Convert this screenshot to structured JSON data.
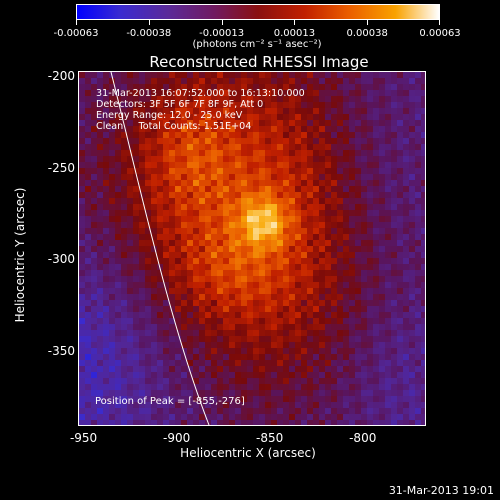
{
  "colorbar": {
    "ticks": [
      "-0.00063",
      "-0.00038",
      "-0.00013",
      "0.00013",
      "0.00038",
      "0.00063"
    ],
    "units": "(photons cm⁻² s⁻¹ asec⁻²)"
  },
  "plot": {
    "title": "Reconstructed RHESSI Image",
    "annotation": {
      "line1": "31-Mar-2013 16:07:52.000 to 16:13:10.000",
      "line2": "Detectors: 3F 5F 6F 7F 8F 9F, Att 0",
      "line3": "Energy Range: 12.0 - 25.0 keV",
      "line4": "Clean     Total Counts: 1.51E+04"
    },
    "peak_label": "Position of Peak = [-855,-276]",
    "x_axis": {
      "label": "Heliocentric X (arcsec)",
      "ticks": [
        "-950",
        "-900",
        "-850",
        "-800"
      ]
    },
    "y_axis": {
      "label": "Heliocentric Y (arcsec)",
      "ticks": [
        "-200",
        "-250",
        "-300",
        "-350"
      ]
    }
  },
  "footer": {
    "timestamp": "31-Mar-2013 19:01"
  },
  "chart_data": {
    "type": "heatmap",
    "title": "Reconstructed RHESSI Image",
    "xlabel": "Heliocentric X (arcsec)",
    "ylabel": "Heliocentric Y (arcsec)",
    "xlim": [
      -953,
      -766
    ],
    "ylim": [
      -391,
      -197
    ],
    "color_range": [
      -0.00063,
      0.00063
    ],
    "peak": {
      "x": -855,
      "y": -276
    }
  }
}
